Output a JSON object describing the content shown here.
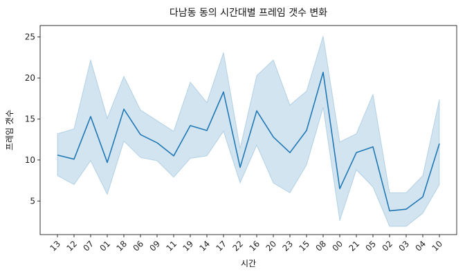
{
  "chart_data": {
    "type": "line",
    "title": "다남동 동의 시간대별 프레임 갯수 변화",
    "xlabel": "시간",
    "ylabel": "프레임 갯수",
    "categories": [
      "13",
      "12",
      "07",
      "01",
      "18",
      "06",
      "09",
      "11",
      "19",
      "14",
      "17",
      "22",
      "16",
      "20",
      "23",
      "15",
      "08",
      "00",
      "21",
      "05",
      "02",
      "03",
      "04",
      "10"
    ],
    "series": [
      {
        "values": [
          10.6,
          10.1,
          15.3,
          9.7,
          16.2,
          13.1,
          12.1,
          10.5,
          14.2,
          13.6,
          18.3,
          9.1,
          16.0,
          12.8,
          10.9,
          13.6,
          20.7,
          6.5,
          10.9,
          11.6,
          3.8,
          4.0,
          5.5,
          12.0
        ],
        "ci_lower": [
          8.1,
          7.0,
          9.9,
          5.8,
          12.3,
          10.3,
          9.9,
          7.9,
          10.2,
          10.5,
          13.5,
          7.2,
          11.8,
          7.2,
          6.0,
          9.4,
          16.4,
          2.6,
          8.8,
          6.7,
          1.9,
          1.9,
          3.5,
          7.0
        ],
        "ci_upper": [
          13.2,
          13.8,
          22.2,
          15.1,
          20.2,
          16.1,
          14.8,
          13.5,
          19.5,
          17.0,
          23.1,
          11.4,
          20.3,
          22.2,
          16.7,
          18.4,
          25.1,
          12.2,
          13.2,
          18.0,
          6.0,
          6.0,
          8.1,
          17.4
        ]
      }
    ],
    "ylim": [
      0.9,
      26.4
    ],
    "yticks": [
      5,
      10,
      15,
      20,
      25
    ],
    "grid": false,
    "legend": "none",
    "line_color": "#1f77b4",
    "band_color": "#1f77b4"
  }
}
